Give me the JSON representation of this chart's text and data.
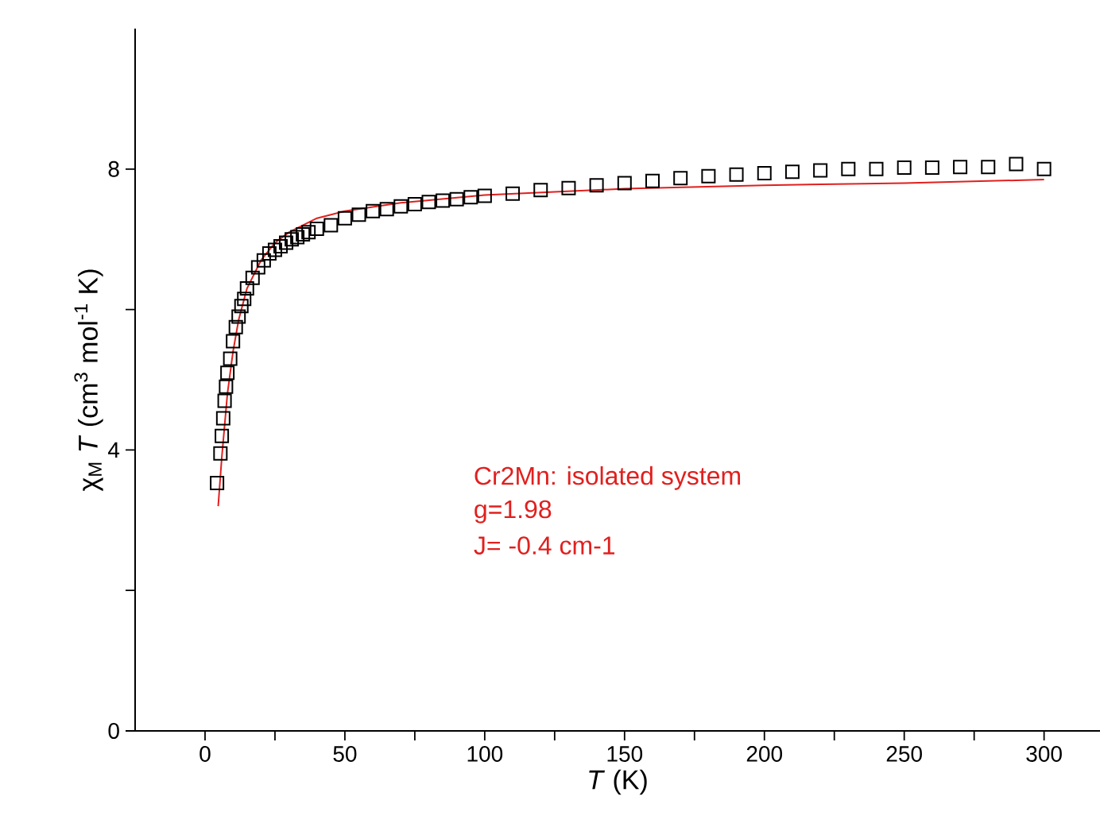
{
  "chart_data": {
    "type": "scatter",
    "xlabel": "*T* (K)",
    "ylabel": "χ$_{M}$ *T* (cm$^{3}$ mol$^{-1}$ K)",
    "xlim": [
      -25,
      320
    ],
    "ylim": [
      0,
      10
    ],
    "xticks": [
      0,
      {
        "value": 25,
        "label": null
      },
      50,
      {
        "value": 75,
        "label": null
      },
      100,
      {
        "value": 125,
        "label": null
      },
      150,
      {
        "value": 175,
        "label": null
      },
      200,
      {
        "value": 225,
        "label": null
      },
      250,
      {
        "value": 275,
        "label": null
      },
      300
    ],
    "yticks": [
      0,
      {
        "value": 2,
        "label": null
      },
      4,
      {
        "value": 6,
        "label": null
      },
      8
    ],
    "series": [
      {
        "marker": "square",
        "color": "#000000",
        "x": [
          4.3,
          5.5,
          6,
          6.5,
          7,
          7.5,
          8,
          9,
          10,
          11,
          12,
          13,
          14,
          15,
          17,
          19,
          21,
          23,
          25,
          27,
          29,
          31,
          33,
          35,
          37,
          40,
          45,
          50,
          55,
          60,
          65,
          70,
          75,
          80,
          85,
          90,
          95,
          100,
          110,
          120,
          130,
          140,
          150,
          160,
          170,
          180,
          190,
          200,
          210,
          220,
          230,
          240,
          250,
          260,
          270,
          280,
          290,
          300
        ],
        "values": [
          3.53,
          3.95,
          4.2,
          4.45,
          4.7,
          4.9,
          5.1,
          5.3,
          5.55,
          5.75,
          5.9,
          6.05,
          6.15,
          6.3,
          6.45,
          6.6,
          6.7,
          6.8,
          6.85,
          6.9,
          6.95,
          7.0,
          7.03,
          7.07,
          7.1,
          7.15,
          7.2,
          7.3,
          7.35,
          7.4,
          7.43,
          7.47,
          7.5,
          7.53,
          7.55,
          7.57,
          7.6,
          7.62,
          7.65,
          7.7,
          7.73,
          7.77,
          7.8,
          7.83,
          7.87,
          7.9,
          7.92,
          7.94,
          7.96,
          7.98,
          8.0,
          8.0,
          8.02,
          8.02,
          8.03,
          8.03,
          8.07,
          8.0
        ]
      },
      {
        "type": "line",
        "marker": "none",
        "line_style": "solid",
        "color": "#e0201e",
        "x": [
          4.7,
          6,
          8,
          10,
          12,
          15,
          20,
          25,
          30,
          40,
          50,
          70,
          100,
          150,
          200,
          250,
          300
        ],
        "values": [
          3.2,
          3.9,
          4.8,
          5.4,
          5.85,
          6.3,
          6.7,
          6.95,
          7.1,
          7.3,
          7.4,
          7.52,
          7.63,
          7.72,
          7.77,
          7.8,
          7.85
        ]
      }
    ],
    "annotations": [
      "Cr2Mn: isolated system",
      "g=1.98",
      "J= -0.4 cm-1"
    ]
  }
}
